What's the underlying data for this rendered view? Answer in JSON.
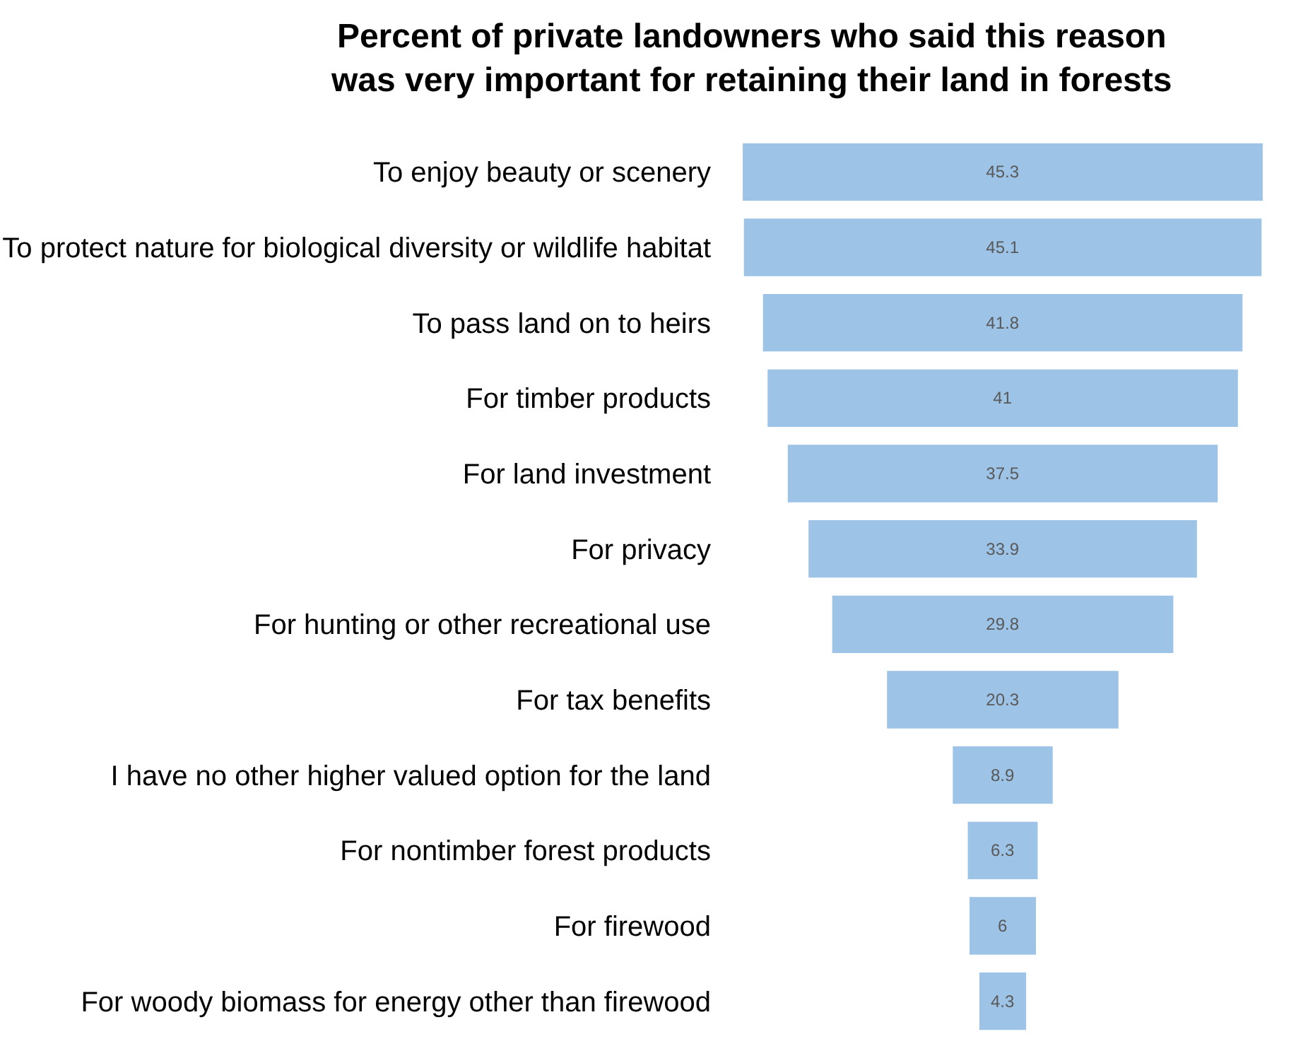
{
  "chart_data": {
    "type": "other",
    "title": "Percent of private landowners who said this reason\nwas very important for retaining their land in forests",
    "categories": [
      "To enjoy beauty or scenery",
      "To protect nature for biological diversity or wildlife habitat",
      "To pass land on to heirs",
      "For timber products",
      "For land investment",
      "For privacy",
      "For hunting or other recreational use",
      "For tax benefits",
      "I have no other higher valued option for the land",
      "For nontimber forest products",
      "For firewood",
      "For woody biomass for energy other than firewood"
    ],
    "values": [
      45.3,
      45.1,
      41.8,
      41,
      37.5,
      33.9,
      29.8,
      20.3,
      8.9,
      6.3,
      6,
      4.3
    ],
    "color": "#9dc3e6",
    "data_labels": true
  }
}
